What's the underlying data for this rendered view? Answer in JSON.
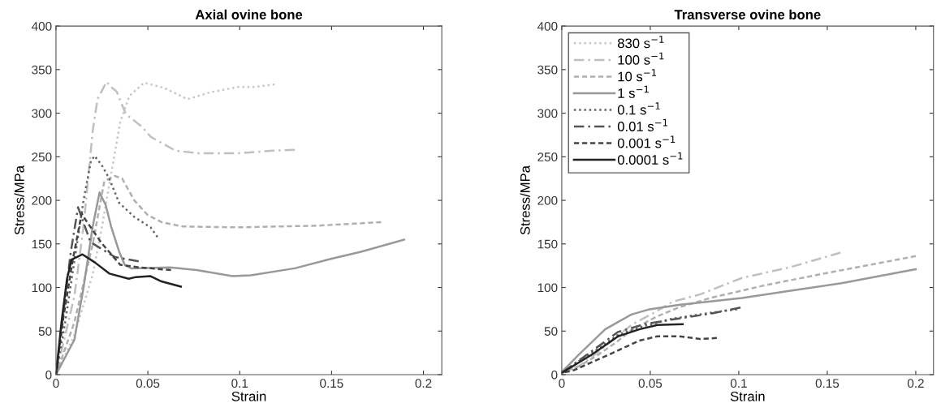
{
  "chart_data": [
    {
      "type": "line",
      "title": "Axial ovine bone",
      "xlabel": "Strain",
      "ylabel": "Stress/MPa",
      "xlim": [
        0,
        0.21
      ],
      "ylim": [
        0,
        400
      ],
      "xticks": [
        0,
        0.05,
        0.1,
        0.15,
        0.2
      ],
      "yticks": [
        0,
        50,
        100,
        150,
        200,
        250,
        300,
        350,
        400
      ],
      "grid": false,
      "legend": false,
      "series": [
        {
          "color": "#c8c8c8",
          "line_style": "dotted",
          "x": [
            0,
            0.01,
            0.02,
            0.025,
            0.03,
            0.035,
            0.04,
            0.048,
            0.059,
            0.0715,
            0.084,
            0.099,
            0.108,
            0.119
          ],
          "values": [
            0,
            45,
            115,
            169,
            230,
            290,
            320,
            335,
            329,
            316,
            324,
            330,
            330,
            333
          ]
        },
        {
          "color": "#c0c0c0",
          "line_style": "dashdot",
          "x": [
            0,
            0.01,
            0.015,
            0.02,
            0.0226,
            0.0275,
            0.03,
            0.033,
            0.038,
            0.047,
            0.0515,
            0.065,
            0.078,
            0.099,
            0.118,
            0.13
          ],
          "values": [
            0,
            90,
            170,
            280,
            316,
            336,
            330,
            325,
            299,
            284,
            273,
            257,
            254,
            254,
            257,
            258
          ]
        },
        {
          "color": "#b0b0b0",
          "line_style": "dashed",
          "x": [
            0,
            0.01,
            0.02,
            0.0263,
            0.032,
            0.036,
            0.0426,
            0.05,
            0.0575,
            0.069,
            0.099,
            0.143,
            0.177
          ],
          "values": [
            0,
            60,
            150,
            222,
            228,
            225,
            200,
            183,
            175,
            170,
            169,
            171,
            175
          ]
        },
        {
          "color": "#999999",
          "line_style": "solid",
          "x": [
            0,
            0.01,
            0.015,
            0.02,
            0.0237,
            0.027,
            0.03,
            0.0344,
            0.0374,
            0.041,
            0.062,
            0.0766,
            0.096,
            0.106,
            0.13,
            0.15,
            0.166,
            0.1895
          ],
          "values": [
            0,
            40,
            100,
            170,
            209,
            195,
            170,
            141,
            126,
            122,
            123,
            120,
            113,
            114,
            122,
            133,
            141,
            155
          ]
        },
        {
          "color": "#666666",
          "line_style": "dotted",
          "x": [
            0,
            0.005,
            0.01,
            0.015,
            0.019,
            0.021,
            0.025,
            0.029,
            0.0344,
            0.0426,
            0.0515,
            0.0552
          ],
          "values": [
            0,
            60,
            130,
            200,
            245,
            251,
            240,
            225,
            197,
            181,
            169,
            158
          ]
        },
        {
          "color": "#555555",
          "line_style": "dashdot",
          "x": [
            0,
            0.004,
            0.008,
            0.012,
            0.0188,
            0.032,
            0.045
          ],
          "values": [
            0,
            70,
            140,
            192,
            152,
            135,
            130
          ]
        },
        {
          "color": "#444444",
          "line_style": "dashed",
          "x": [
            0,
            0.004,
            0.009,
            0.014,
            0.016,
            0.0248,
            0.035,
            0.0455,
            0.0626
          ],
          "values": [
            0,
            65,
            130,
            185,
            178,
            151,
            126,
            123,
            120
          ]
        },
        {
          "color": "#222222",
          "line_style": "solid",
          "x": [
            0,
            0.003,
            0.006,
            0.0085,
            0.0144,
            0.021,
            0.029,
            0.0396,
            0.0435,
            0.0515,
            0.0574,
            0.068
          ],
          "values": [
            0,
            60,
            110,
            132,
            138,
            129,
            116,
            110,
            112,
            113,
            107,
            101
          ]
        }
      ]
    },
    {
      "type": "line",
      "title": "Transverse ovine bone",
      "xlabel": "Strain",
      "ylabel": "Stress/MPa",
      "xlim": [
        0,
        0.21
      ],
      "ylim": [
        0,
        400
      ],
      "xticks": [
        0,
        0.05,
        0.1,
        0.15,
        0.2
      ],
      "yticks": [
        0,
        50,
        100,
        150,
        200,
        250,
        300,
        350,
        400
      ],
      "grid": false,
      "legend": "top left",
      "series": [
        {
          "name": "830 s$^{−1}$",
          "color": "#c8c8c8",
          "line_style": "dotted"
        },
        {
          "name": "100 s$^{−1}$",
          "color": "#c0c0c0",
          "line_style": "dashdot",
          "x": [
            0,
            0.01,
            0.02,
            0.03,
            0.04,
            0.0512,
            0.063,
            0.078,
            0.1018,
            0.1285,
            0.1575
          ],
          "values": [
            2,
            10,
            25,
            42,
            58,
            70,
            84,
            92,
            111,
            123,
            140
          ]
        },
        {
          "name": "10 s$^{−1}$",
          "color": "#b0b0b0",
          "line_style": "dashed",
          "x": [
            0,
            0.01,
            0.02,
            0.03,
            0.04,
            0.054,
            0.066,
            0.084,
            0.1136,
            0.143,
            0.2
          ],
          "values": [
            2,
            10,
            22,
            36,
            52,
            67,
            77,
            88,
            102,
            114,
            136
          ]
        },
        {
          "name": "1 s$^{−1}$",
          "color": "#999999",
          "line_style": "solid",
          "x": [
            0,
            0.0096,
            0.0245,
            0.0393,
            0.0496,
            0.066,
            0.084,
            0.1018,
            0.1285,
            0.158,
            0.2
          ],
          "values": [
            3,
            23,
            52,
            69,
            75,
            80,
            84,
            88,
            96,
            105,
            121
          ]
        },
        {
          "name": "0.1 s$^{−1}$",
          "color": "#666666",
          "line_style": "dotted",
          "x": [
            0,
            0.017,
            0.032,
            0.047,
            0.062,
            0.084,
            0.099
          ],
          "values": [
            3,
            25,
            46,
            56,
            64,
            71,
            75
          ]
        },
        {
          "name": "0.01 s$^{−1}$",
          "color": "#555555",
          "line_style": "dashdot",
          "x": [
            0,
            0.017,
            0.0318,
            0.0468,
            0.0616,
            0.084,
            0.101
          ],
          "values": [
            2,
            27,
            49,
            58,
            63,
            70,
            77
          ]
        },
        {
          "name": "0.001 s$^{−1}$",
          "color": "#444444",
          "line_style": "dashed",
          "x": [
            0,
            0.0067,
            0.0245,
            0.0438,
            0.054,
            0.066,
            0.078,
            0.0876
          ],
          "values": [
            2,
            5,
            21,
            39,
            44,
            44,
            41,
            42
          ]
        },
        {
          "name": "0.0001 s$^{−1}$",
          "color": "#222222",
          "line_style": "solid",
          "x": [
            0,
            0.017,
            0.0318,
            0.0438,
            0.054,
            0.0683
          ],
          "values": [
            2,
            23,
            44,
            52,
            57,
            58
          ]
        }
      ]
    }
  ]
}
